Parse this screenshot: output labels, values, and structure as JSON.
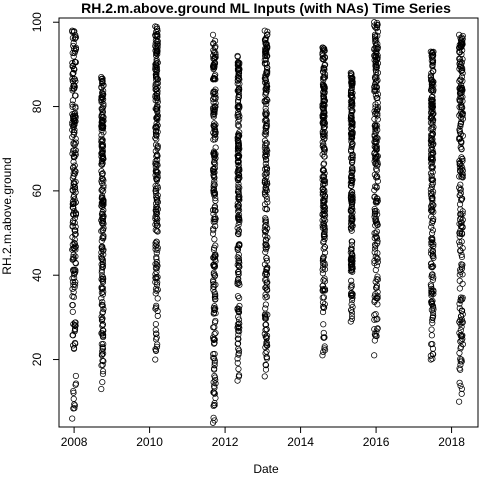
{
  "chart_data": {
    "type": "scatter",
    "title": "RH.2.m.above.ground ML Inputs (with NAs) Time Series",
    "xlabel": "Date",
    "ylabel": "RH.2.m.above.ground",
    "xlim": [
      2007.6,
      2018.7
    ],
    "ylim": [
      4,
      101
    ],
    "x_ticks": [
      2008,
      2010,
      2012,
      2014,
      2016,
      2018
    ],
    "x_tick_labels": [
      "2008",
      "2010",
      "2012",
      "2014",
      "2016",
      "2018"
    ],
    "y_ticks": [
      20,
      40,
      60,
      80,
      100
    ],
    "y_tick_labels": [
      "20",
      "40",
      "60",
      "80",
      "100"
    ],
    "grid": false,
    "marker": "open-circle",
    "series": [
      {
        "clusters": [
          {
            "x_start": 2007.95,
            "x_end": 2008.05,
            "y_min": 6,
            "y_max": 98
          },
          {
            "x_start": 2008.72,
            "x_end": 2008.78,
            "y_min": 13,
            "y_max": 87
          },
          {
            "x_start": 2010.15,
            "x_end": 2010.22,
            "y_min": 20,
            "y_max": 99
          },
          {
            "x_start": 2011.68,
            "x_end": 2011.75,
            "y_min": 5,
            "y_max": 97
          },
          {
            "x_start": 2012.33,
            "x_end": 2012.38,
            "y_min": 15,
            "y_max": 92
          },
          {
            "x_start": 2013.05,
            "x_end": 2013.12,
            "y_min": 16,
            "y_max": 98
          },
          {
            "x_start": 2014.58,
            "x_end": 2014.65,
            "y_min": 21,
            "y_max": 94
          },
          {
            "x_start": 2015.33,
            "x_end": 2015.38,
            "y_min": 29,
            "y_max": 88
          },
          {
            "x_start": 2015.95,
            "x_end": 2016.05,
            "y_min": 21,
            "y_max": 100
          },
          {
            "x_start": 2017.45,
            "x_end": 2017.52,
            "y_min": 20,
            "y_max": 93
          },
          {
            "x_start": 2018.2,
            "x_end": 2018.3,
            "y_min": 10,
            "y_max": 97
          }
        ]
      }
    ]
  }
}
